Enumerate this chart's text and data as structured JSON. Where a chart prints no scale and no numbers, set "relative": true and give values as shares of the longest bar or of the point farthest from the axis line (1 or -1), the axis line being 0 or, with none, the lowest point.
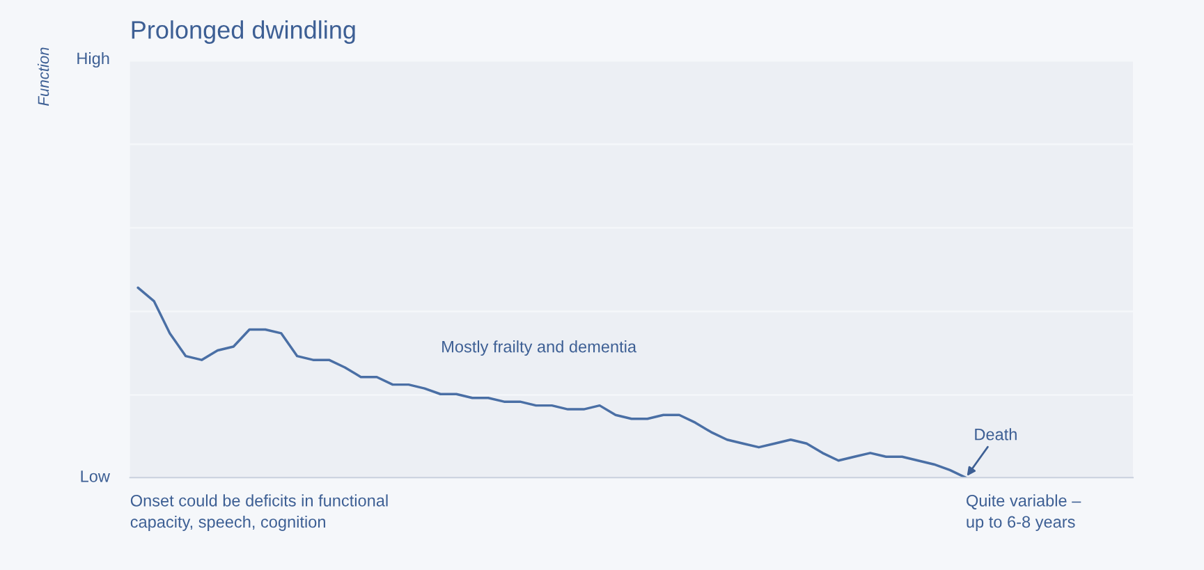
{
  "chart_data": {
    "type": "line",
    "title": "Prolonged dwindling",
    "relative": true,
    "categories": [
      null,
      null,
      null,
      null,
      null,
      null,
      null,
      null,
      null,
      null,
      null,
      null,
      null,
      null,
      null,
      null,
      null,
      null,
      null,
      null,
      null,
      null,
      null,
      null,
      null,
      null,
      null,
      null,
      null,
      null,
      null,
      null,
      null,
      null,
      null,
      null,
      null,
      null,
      null,
      null,
      null,
      null,
      null,
      null,
      null,
      null,
      null,
      null,
      null,
      null,
      null,
      null,
      null,
      null,
      null,
      null,
      null,
      null,
      null,
      null,
      null,
      null,
      null
    ],
    "series": [
      {
        "color": "#4a6fa5",
        "values": [
          1.0,
          0.93,
          0.76,
          0.64,
          0.62,
          0.67,
          0.69,
          0.78,
          0.78,
          0.76,
          0.64,
          0.62,
          0.62,
          0.58,
          0.53,
          0.53,
          0.49,
          0.49,
          0.47,
          0.44,
          0.44,
          0.42,
          0.42,
          0.4,
          0.4,
          0.38,
          0.38,
          0.36,
          0.36,
          0.38,
          0.33,
          0.31,
          0.31,
          0.33,
          0.33,
          0.29,
          0.24,
          0.2,
          0.18,
          0.16,
          0.18,
          0.2,
          0.18,
          0.13,
          0.09,
          0.11,
          0.13,
          0.11,
          0.11,
          0.09,
          0.07,
          0.04,
          0.0,
          null,
          null,
          null,
          null,
          null,
          null,
          null,
          null,
          null,
          null
        ]
      }
    ],
    "marker": "none",
    "line_style": "solid",
    "annotations": [
      "Function",
      "High",
      "Low",
      "Mostly frailty and dementia",
      "Death",
      "Onset could be deficits in functional\ncapacity, speech, cognition",
      "Quite variable –\nup to 6-8 years"
    ]
  }
}
